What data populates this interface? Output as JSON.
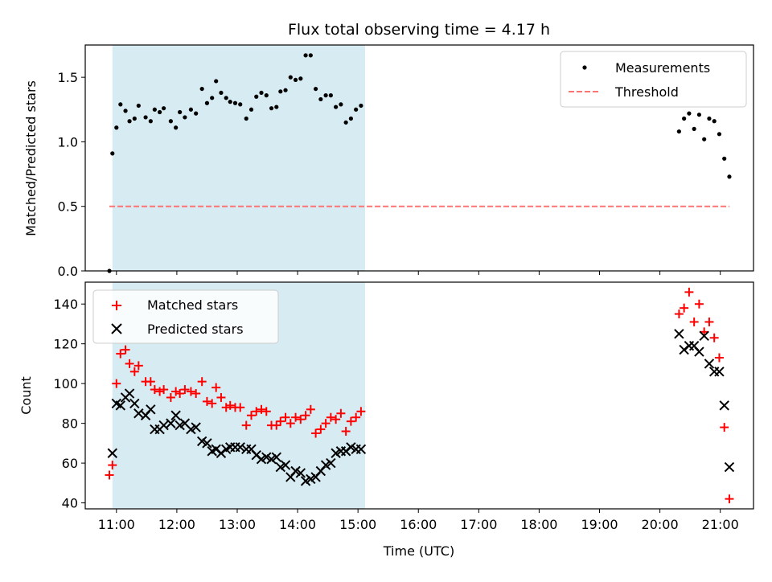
{
  "figure": {
    "title": "Flux total observing time = 4.17 h"
  },
  "chart_data": [
    {
      "type": "scatter",
      "ylabel": "Matched/Predicted stars",
      "ylim": [
        0,
        1.75
      ],
      "yticks": [
        "0.0",
        "0.5",
        "1.0",
        "1.5"
      ],
      "shaded_span": [
        "10:56",
        "15:07"
      ],
      "legend": {
        "placement": "top-right"
      },
      "series": [
        {
          "name": "Measurements",
          "color": "#000000",
          "marker": "dot",
          "points": [
            [
              "10:53",
              0.0
            ],
            [
              "10:56",
              0.91
            ],
            [
              "11:00",
              1.11
            ],
            [
              "11:04",
              1.29
            ],
            [
              "11:09",
              1.24
            ],
            [
              "11:13",
              1.16
            ],
            [
              "11:18",
              1.18
            ],
            [
              "11:22",
              1.28
            ],
            [
              "11:29",
              1.19
            ],
            [
              "11:34",
              1.16
            ],
            [
              "11:38",
              1.25
            ],
            [
              "11:43",
              1.23
            ],
            [
              "11:47",
              1.26
            ],
            [
              "11:54",
              1.16
            ],
            [
              "11:59",
              1.11
            ],
            [
              "12:03",
              1.23
            ],
            [
              "12:08",
              1.19
            ],
            [
              "12:14",
              1.25
            ],
            [
              "12:19",
              1.22
            ],
            [
              "12:25",
              1.41
            ],
            [
              "12:30",
              1.3
            ],
            [
              "12:35",
              1.34
            ],
            [
              "12:39",
              1.47
            ],
            [
              "12:44",
              1.38
            ],
            [
              "12:49",
              1.34
            ],
            [
              "12:53",
              1.31
            ],
            [
              "12:58",
              1.3
            ],
            [
              "13:03",
              1.29
            ],
            [
              "13:09",
              1.18
            ],
            [
              "13:14",
              1.25
            ],
            [
              "13:19",
              1.35
            ],
            [
              "13:24",
              1.38
            ],
            [
              "13:29",
              1.36
            ],
            [
              "13:34",
              1.26
            ],
            [
              "13:39",
              1.27
            ],
            [
              "13:43",
              1.39
            ],
            [
              "13:48",
              1.4
            ],
            [
              "13:53",
              1.5
            ],
            [
              "13:58",
              1.48
            ],
            [
              "14:03",
              1.49
            ],
            [
              "14:08",
              1.67
            ],
            [
              "14:13",
              1.67
            ],
            [
              "14:18",
              1.41
            ],
            [
              "14:23",
              1.33
            ],
            [
              "14:28",
              1.36
            ],
            [
              "14:33",
              1.36
            ],
            [
              "14:38",
              1.27
            ],
            [
              "14:43",
              1.29
            ],
            [
              "14:48",
              1.15
            ],
            [
              "14:53",
              1.18
            ],
            [
              "14:58",
              1.25
            ],
            [
              "15:03",
              1.28
            ],
            [
              "20:19",
              1.08
            ],
            [
              "20:24",
              1.18
            ],
            [
              "20:29",
              1.22
            ],
            [
              "20:34",
              1.1
            ],
            [
              "20:39",
              1.21
            ],
            [
              "20:44",
              1.02
            ],
            [
              "20:49",
              1.18
            ],
            [
              "20:54",
              1.16
            ],
            [
              "20:59",
              1.06
            ],
            [
              "21:04",
              0.87
            ],
            [
              "21:09",
              0.73
            ]
          ]
        },
        {
          "name": "Threshold",
          "color": "#ff7373",
          "style": "dashed",
          "points": [
            [
              "10:53",
              0.5
            ],
            [
              "21:09",
              0.5
            ]
          ]
        }
      ]
    },
    {
      "type": "scatter",
      "xlabel": "Time (UTC)",
      "ylabel": "Count",
      "ylim": [
        37,
        151
      ],
      "yticks": [
        "40",
        "60",
        "80",
        "100",
        "120",
        "140"
      ],
      "xticks": [
        "11:00",
        "12:00",
        "13:00",
        "14:00",
        "15:00",
        "16:00",
        "17:00",
        "18:00",
        "19:00",
        "20:00",
        "21:00"
      ],
      "xlim": [
        "10:29",
        "21:33"
      ],
      "shaded_span": [
        "10:56",
        "15:07"
      ],
      "legend": {
        "placement": "top-left"
      },
      "series": [
        {
          "name": "Matched stars",
          "color": "#ff0000",
          "marker": "plus",
          "points": [
            [
              "10:53",
              54
            ],
            [
              "10:56",
              59
            ],
            [
              "11:00",
              100
            ],
            [
              "11:04",
              115
            ],
            [
              "11:09",
              117
            ],
            [
              "11:13",
              110
            ],
            [
              "11:18",
              106
            ],
            [
              "11:22",
              109
            ],
            [
              "11:29",
              101
            ],
            [
              "11:34",
              101
            ],
            [
              "11:38",
              97
            ],
            [
              "11:43",
              96
            ],
            [
              "11:47",
              97
            ],
            [
              "11:54",
              93
            ],
            [
              "11:59",
              96
            ],
            [
              "12:03",
              95
            ],
            [
              "12:08",
              97
            ],
            [
              "12:14",
              96
            ],
            [
              "12:19",
              95
            ],
            [
              "12:25",
              101
            ],
            [
              "12:30",
              91
            ],
            [
              "12:35",
              90
            ],
            [
              "12:39",
              98
            ],
            [
              "12:44",
              93
            ],
            [
              "12:49",
              88
            ],
            [
              "12:53",
              89
            ],
            [
              "12:58",
              88
            ],
            [
              "13:03",
              88
            ],
            [
              "13:09",
              79
            ],
            [
              "13:14",
              84
            ],
            [
              "13:19",
              86
            ],
            [
              "13:24",
              87
            ],
            [
              "13:29",
              86
            ],
            [
              "13:34",
              79
            ],
            [
              "13:39",
              79
            ],
            [
              "13:43",
              81
            ],
            [
              "13:48",
              83
            ],
            [
              "13:53",
              80
            ],
            [
              "13:58",
              83
            ],
            [
              "14:03",
              82
            ],
            [
              "14:08",
              84
            ],
            [
              "14:13",
              87
            ],
            [
              "14:18",
              75
            ],
            [
              "14:23",
              77
            ],
            [
              "14:28",
              80
            ],
            [
              "14:33",
              83
            ],
            [
              "14:38",
              82
            ],
            [
              "14:43",
              85
            ],
            [
              "14:48",
              76
            ],
            [
              "14:53",
              81
            ],
            [
              "14:58",
              83
            ],
            [
              "15:03",
              86
            ],
            [
              "20:19",
              135
            ],
            [
              "20:24",
              138
            ],
            [
              "20:29",
              146
            ],
            [
              "20:34",
              131
            ],
            [
              "20:39",
              140
            ],
            [
              "20:44",
              126
            ],
            [
              "20:49",
              131
            ],
            [
              "20:54",
              123
            ],
            [
              "20:59",
              113
            ],
            [
              "21:04",
              78
            ],
            [
              "21:09",
              42
            ]
          ]
        },
        {
          "name": "Predicted stars",
          "color": "#000000",
          "marker": "x",
          "points": [
            [
              "10:56",
              65
            ],
            [
              "11:00",
              90
            ],
            [
              "11:04",
              89
            ],
            [
              "11:09",
              93
            ],
            [
              "11:13",
              95
            ],
            [
              "11:18",
              90
            ],
            [
              "11:22",
              85
            ],
            [
              "11:29",
              84
            ],
            [
              "11:34",
              87
            ],
            [
              "11:38",
              77
            ],
            [
              "11:43",
              77
            ],
            [
              "11:47",
              79
            ],
            [
              "11:54",
              80
            ],
            [
              "11:59",
              84
            ],
            [
              "12:03",
              79
            ],
            [
              "12:08",
              80
            ],
            [
              "12:14",
              77
            ],
            [
              "12:19",
              78
            ],
            [
              "12:25",
              71
            ],
            [
              "12:30",
              70
            ],
            [
              "12:35",
              66
            ],
            [
              "12:39",
              67
            ],
            [
              "12:44",
              65
            ],
            [
              "12:49",
              67
            ],
            [
              "12:53",
              68
            ],
            [
              "12:58",
              68
            ],
            [
              "13:03",
              68
            ],
            [
              "13:09",
              67
            ],
            [
              "13:14",
              67
            ],
            [
              "13:19",
              64
            ],
            [
              "13:24",
              62
            ],
            [
              "13:29",
              63
            ],
            [
              "13:34",
              62
            ],
            [
              "13:39",
              63
            ],
            [
              "13:43",
              58
            ],
            [
              "13:48",
              59
            ],
            [
              "13:53",
              53
            ],
            [
              "13:58",
              56
            ],
            [
              "14:03",
              55
            ],
            [
              "14:08",
              51
            ],
            [
              "14:13",
              52
            ],
            [
              "14:18",
              53
            ],
            [
              "14:23",
              56
            ],
            [
              "14:28",
              59
            ],
            [
              "14:33",
              60
            ],
            [
              "14:38",
              65
            ],
            [
              "14:43",
              66
            ],
            [
              "14:48",
              66
            ],
            [
              "14:53",
              68
            ],
            [
              "14:58",
              67
            ],
            [
              "15:03",
              67
            ],
            [
              "20:19",
              125
            ],
            [
              "20:24",
              117
            ],
            [
              "20:29",
              119
            ],
            [
              "20:34",
              119
            ],
            [
              "20:39",
              116
            ],
            [
              "20:44",
              124
            ],
            [
              "20:49",
              110
            ],
            [
              "20:54",
              106
            ],
            [
              "20:59",
              106
            ],
            [
              "21:04",
              89
            ],
            [
              "21:09",
              58
            ]
          ]
        }
      ]
    }
  ]
}
